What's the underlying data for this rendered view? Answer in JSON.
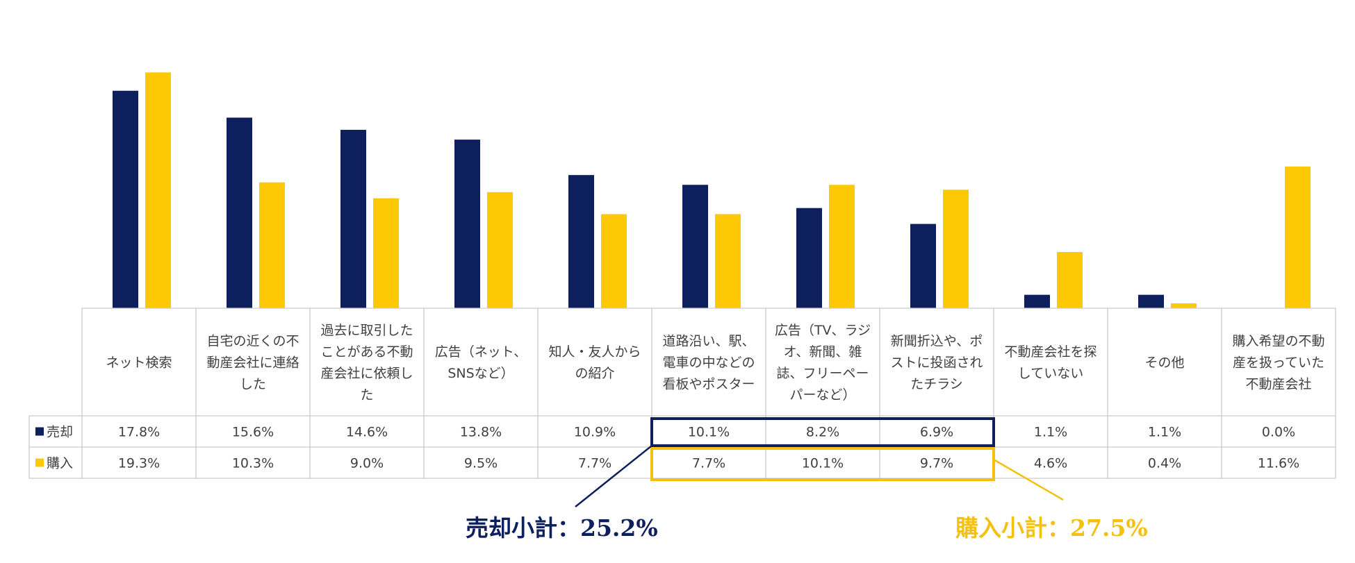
{
  "chart_data": {
    "type": "bar",
    "title": "",
    "xlabel": "",
    "ylabel": "",
    "ylim": [
      0,
      20
    ],
    "grid": false,
    "legend_position": "table-left",
    "categories": [
      "ネット検索",
      "自宅の近くの不動産会社に連絡した",
      "過去に取引したことがある不動産会社に依頼した",
      "広告（ネット、SNSなど）",
      "知人・友人からの紹介",
      "道路沿い、駅、電車の中などの看板やポスター",
      "広告（TV、ラジオ、新聞、雑誌、フリーペーパーなど）",
      "新聞折込や、ポストに投函されたチラシ",
      "不動産会社を探していない",
      "その他",
      "購入希望の不動産を扱っていた不動産会社"
    ],
    "category_lines": [
      [
        "ネット検索"
      ],
      [
        "自宅の近くの不",
        "動産会社に連絡",
        "した"
      ],
      [
        "過去に取引した",
        "ことがある不動",
        "産会社に依頼し",
        "た"
      ],
      [
        "広告（ネット、",
        "SNSなど）"
      ],
      [
        "知人・友人から",
        "の紹介"
      ],
      [
        "道路沿い、駅、",
        "電車の中などの",
        "看板やポスター"
      ],
      [
        "広告（TV、ラジ",
        "オ、新聞、雑",
        "誌、フリーペー",
        "パーなど）"
      ],
      [
        "新聞折込や、ポ",
        "ストに投函され",
        "たチラシ"
      ],
      [
        "不動産会社を探",
        "していない"
      ],
      [
        "その他"
      ],
      [
        "購入希望の不動",
        "産を扱っていた",
        "不動産会社"
      ]
    ],
    "series": [
      {
        "name": "売却",
        "color": "#0d1f5c",
        "values": [
          17.8,
          15.6,
          14.6,
          13.8,
          10.9,
          10.1,
          8.2,
          6.9,
          1.1,
          1.1,
          0.0
        ],
        "labels": [
          "17.8%",
          "15.6%",
          "14.6%",
          "13.8%",
          "10.9%",
          "10.1%",
          "8.2%",
          "6.9%",
          "1.1%",
          "1.1%",
          "0.0%"
        ]
      },
      {
        "name": "購入",
        "color": "#ffc805",
        "values": [
          19.3,
          10.3,
          9.0,
          9.5,
          7.7,
          7.7,
          10.1,
          9.7,
          4.6,
          0.4,
          11.6
        ],
        "labels": [
          "19.3%",
          "10.3%",
          "9.0%",
          "9.5%",
          "7.7%",
          "7.7%",
          "10.1%",
          "9.7%",
          "4.6%",
          "0.4%",
          "11.6%"
        ]
      }
    ],
    "annotations": [
      {
        "label": "売却小計：25.2%",
        "series": "売却",
        "categories": [
          5,
          6,
          7
        ],
        "color": "#0d1f5c"
      },
      {
        "label": "購入小計：27.5%",
        "series": "購入",
        "categories": [
          5,
          6,
          7
        ],
        "color": "#f5c110"
      }
    ]
  }
}
